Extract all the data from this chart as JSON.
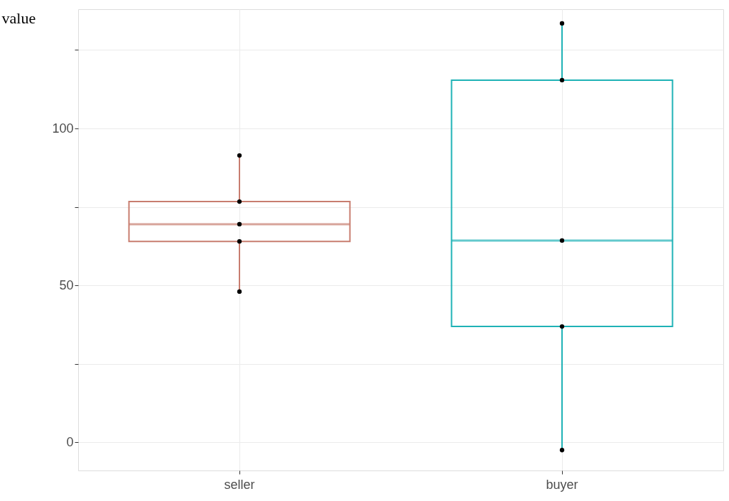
{
  "chart_data": {
    "type": "box",
    "categories": [
      "seller",
      "buyer"
    ],
    "ylabel": "value",
    "ylim": [
      -9,
      138
    ],
    "yticks": [
      0,
      {
        "value": 25,
        "label": null
      },
      50,
      {
        "value": 75,
        "label": null
      },
      100,
      {
        "value": 125,
        "label": null
      }
    ],
    "grid": true,
    "series": [
      {
        "colors": [
          "#c87d6f",
          "#1fb2b6"
        ],
        "boxes": [
          {
            "low": 48,
            "q1": 64,
            "median": 69.5,
            "q3": 76.7,
            "high": 91.4
          },
          {
            "low": -2.5,
            "q1": 36.9,
            "median": 64.3,
            "q3": 115.4,
            "high": 133.5
          }
        ]
      },
      {
        "type": "scatter",
        "color": "#000000",
        "marker": "circle",
        "x": [
          "seller",
          "seller",
          "seller",
          "seller",
          "seller",
          "buyer",
          "buyer",
          "buyer",
          "buyer",
          "buyer"
        ],
        "values": [
          48,
          64,
          69.5,
          76.7,
          91.4,
          -2.5,
          36.9,
          64.3,
          115.4,
          133.5
        ]
      }
    ]
  }
}
